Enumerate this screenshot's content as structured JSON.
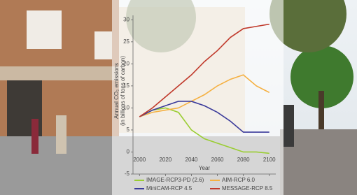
{
  "chart_data": {
    "type": "line",
    "ylabel": [
      "Annual CO₂ emissions",
      "(in billions of tons of carbon)"
    ],
    "xlabel": "Year",
    "x": [
      2000,
      2010,
      2020,
      2030,
      2040,
      2050,
      2060,
      2070,
      2080,
      2090,
      2100
    ],
    "series": [
      {
        "name": "IMAGE-RCP3-PD (2.6)",
        "color": "#9acd32",
        "values": [
          8,
          9.5,
          10,
          9,
          5,
          3,
          2,
          1,
          0,
          0,
          -0.3
        ]
      },
      {
        "name": "AIM-RCP 6.0",
        "color": "#f5b041",
        "values": [
          8,
          9,
          9.5,
          10,
          11.5,
          13,
          15,
          16.5,
          17.5,
          15,
          13.5
        ]
      },
      {
        "name": "MiniCAM-RCP 4.5",
        "color": "#3a3a9a",
        "values": [
          8,
          9.5,
          10.5,
          11.5,
          11.5,
          10.5,
          9,
          7,
          4.5,
          4.5,
          4.5
        ]
      },
      {
        "name": "MESSAGE-RCP 8.5",
        "color": "#c0392b",
        "values": [
          8,
          10,
          12.5,
          15,
          17.5,
          20.5,
          23,
          26,
          28,
          28.5,
          29
        ]
      }
    ],
    "xlim": [
      1995,
      2105
    ],
    "xticks": [
      2000,
      2020,
      2040,
      2060,
      2080,
      2100
    ],
    "ylim": [
      -5,
      31
    ],
    "yticks": [
      -5,
      0,
      5,
      10,
      15,
      20,
      25,
      30
    ],
    "legend": "bottom"
  }
}
